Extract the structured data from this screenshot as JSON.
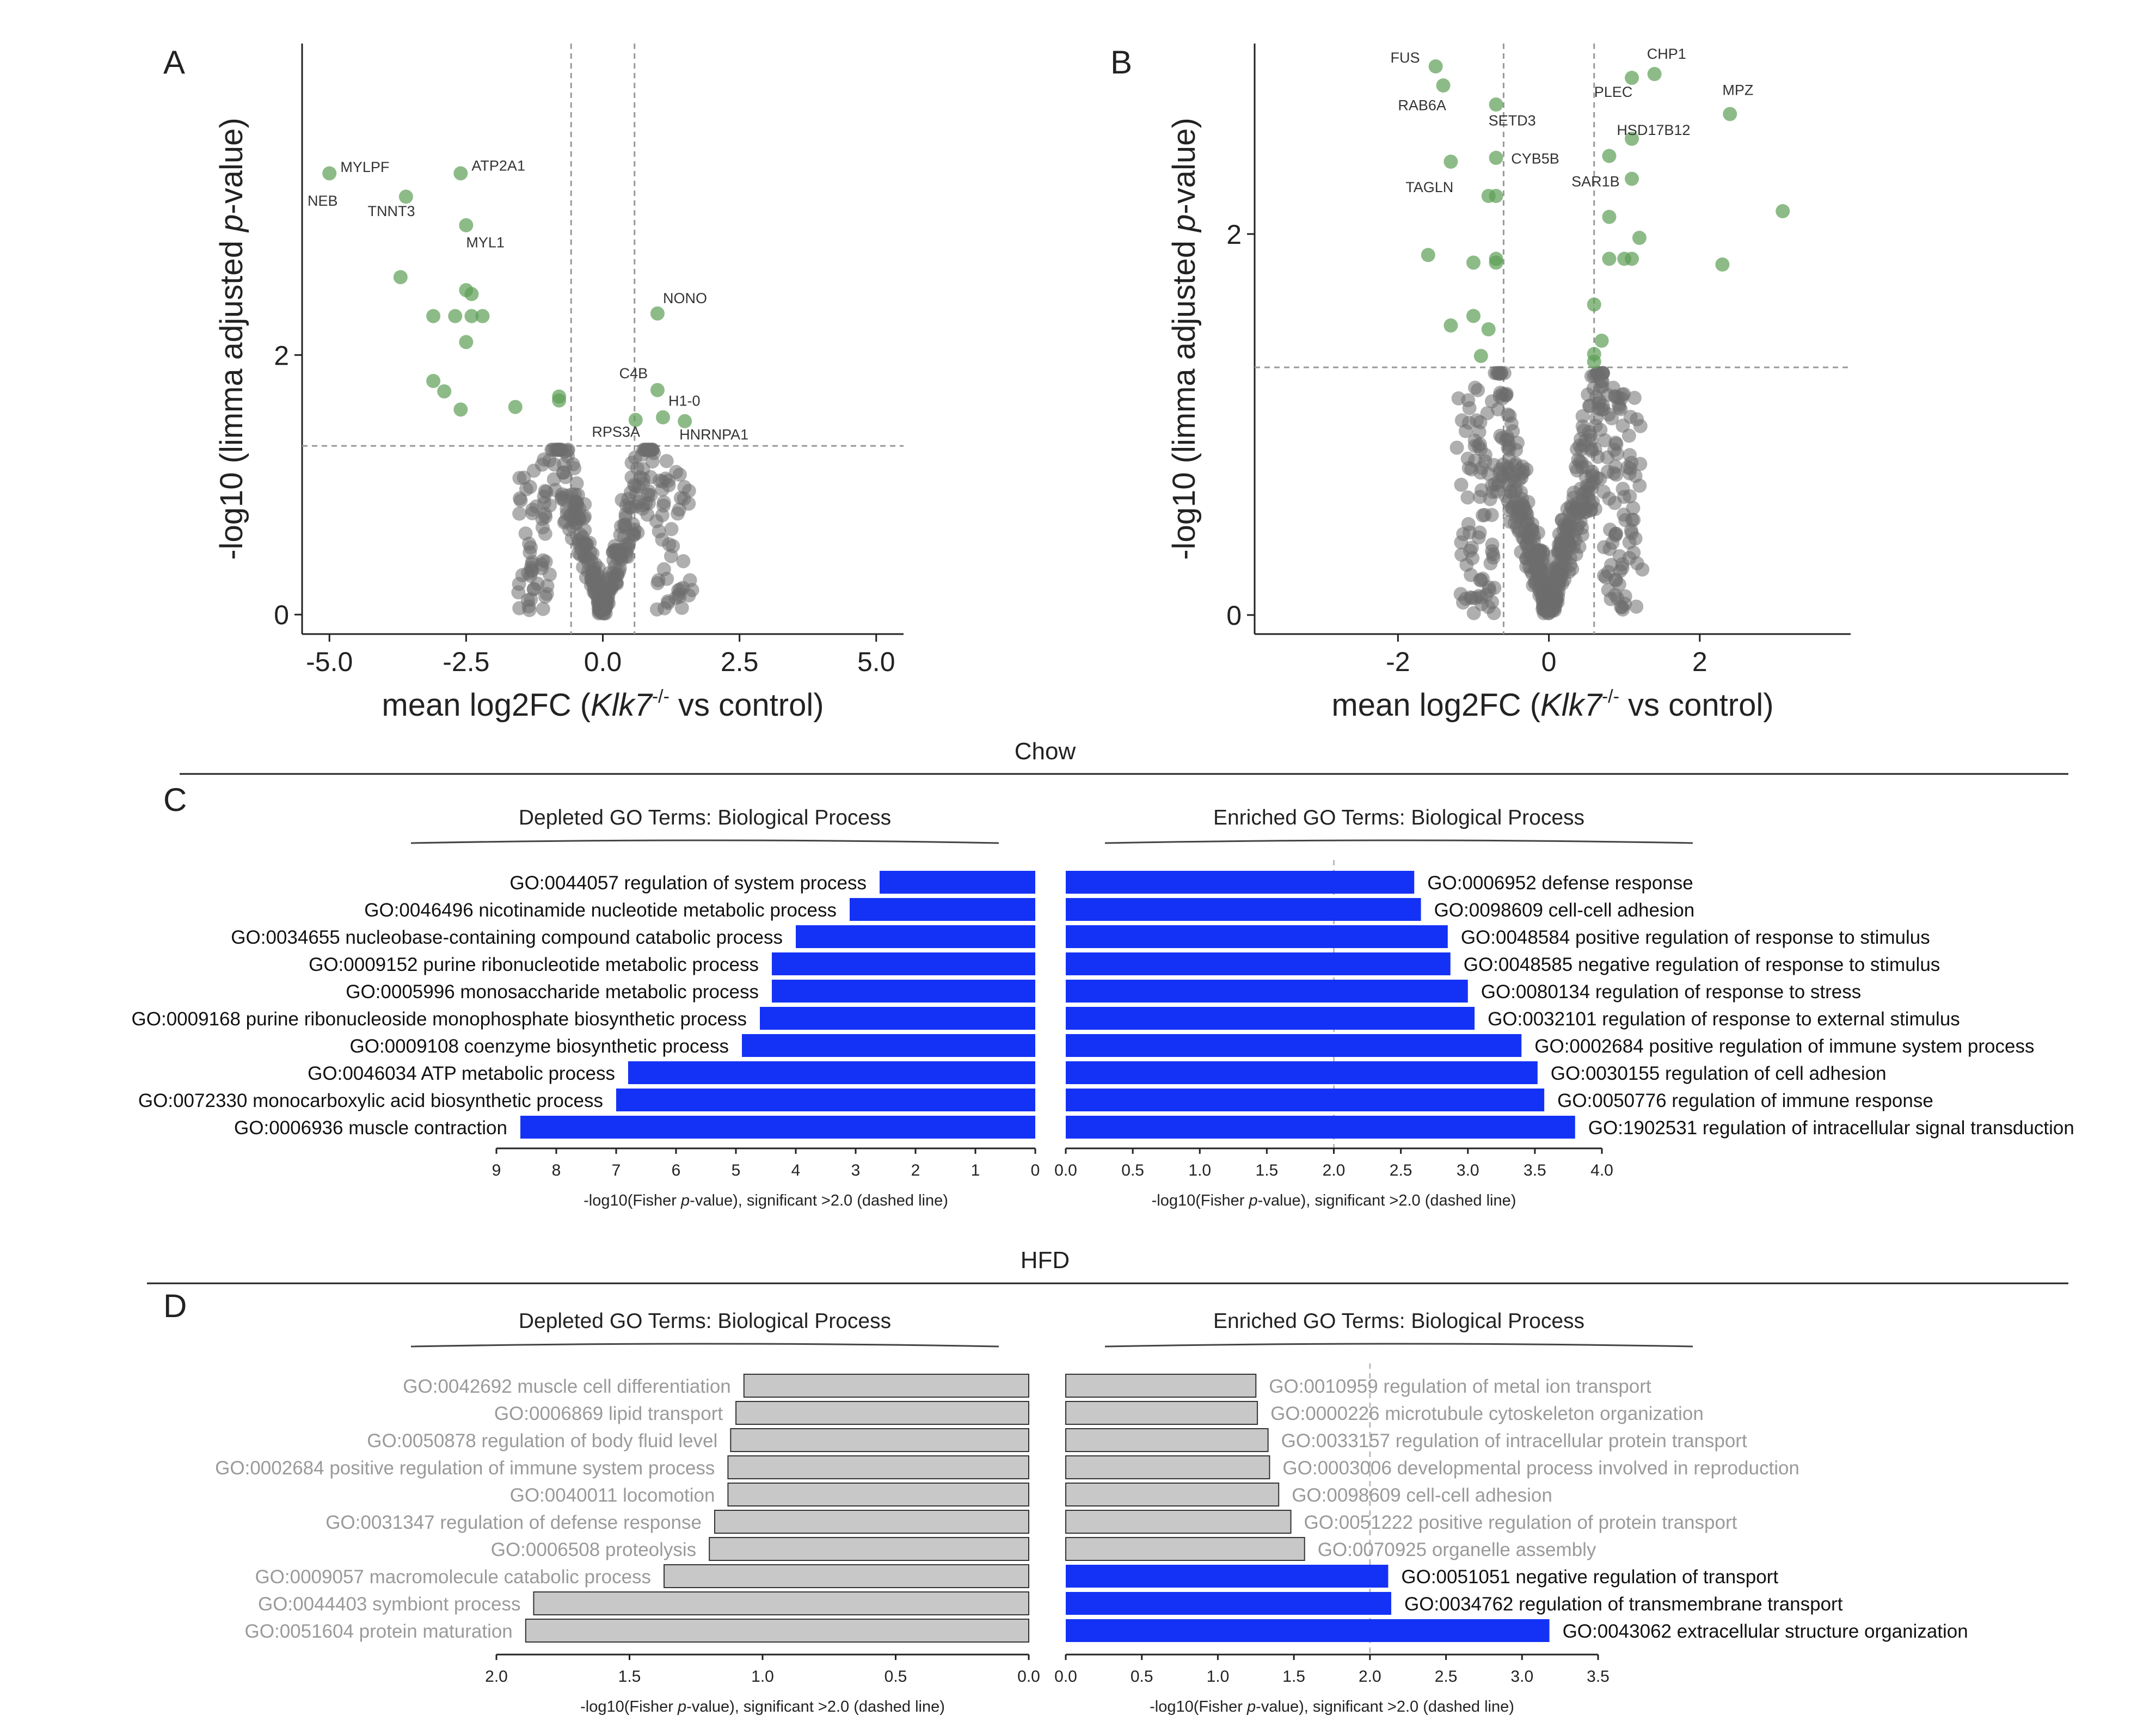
{
  "panels": {
    "A": "A",
    "B": "B",
    "C": "C",
    "D": "D"
  },
  "chart_data": [
    {
      "id": "A",
      "type": "scatter",
      "title": "",
      "xlabel_prefix": "mean log2FC (",
      "xlabel_gene": "Klk7",
      "xlabel_sup": "-/-",
      "xlabel_suffix": " vs control)",
      "ylabel_prefix": "-log10 (limma adjusted ",
      "ylabel_italic": "p",
      "ylabel_suffix": "-value)",
      "xlim": [
        -5.5,
        5.5
      ],
      "ylim": [
        -0.15,
        4.4
      ],
      "xticks": [
        -5.0,
        -2.5,
        0.0,
        2.5,
        5.0
      ],
      "xtick_labels": [
        "-5.0",
        "-2.5",
        "0.0",
        "2.5",
        "5.0"
      ],
      "yticks": [
        0,
        2
      ],
      "ytick_labels": [
        "0",
        "2"
      ],
      "vlines": [
        -0.58,
        0.58
      ],
      "hline": 1.3,
      "significant_points": [
        [
          -5.0,
          3.4
        ],
        [
          -3.6,
          3.22
        ],
        [
          -2.6,
          3.4
        ],
        [
          -2.5,
          3.0
        ],
        [
          -3.7,
          2.6
        ],
        [
          -2.5,
          2.5
        ],
        [
          -2.4,
          2.47
        ],
        [
          -3.1,
          2.3
        ],
        [
          -2.7,
          2.3
        ],
        [
          -2.4,
          2.3
        ],
        [
          -2.2,
          2.3
        ],
        [
          -2.5,
          2.1
        ],
        [
          -3.1,
          1.8
        ],
        [
          -2.9,
          1.72
        ],
        [
          -2.6,
          1.58
        ],
        [
          -1.6,
          1.6
        ],
        [
          -0.8,
          1.65
        ],
        [
          -0.8,
          1.68
        ],
        [
          1.0,
          2.32
        ],
        [
          1.0,
          1.73
        ],
        [
          1.1,
          1.52
        ],
        [
          0.6,
          1.5
        ],
        [
          1.5,
          1.49
        ]
      ],
      "labels": [
        {
          "text": "MYLPF",
          "x": -4.8,
          "y": 3.41,
          "anchor": "start"
        },
        {
          "text": "ATP2A1",
          "x": -2.4,
          "y": 3.42,
          "anchor": "start"
        },
        {
          "text": "NEB",
          "x": -5.4,
          "y": 3.15,
          "anchor": "start"
        },
        {
          "text": "TNNT3",
          "x": -4.3,
          "y": 3.07,
          "anchor": "start"
        },
        {
          "text": "MYL1",
          "x": -2.5,
          "y": 2.83,
          "anchor": "start"
        },
        {
          "text": "NONO",
          "x": 1.1,
          "y": 2.4,
          "anchor": "start"
        },
        {
          "text": "C4B",
          "x": 0.3,
          "y": 1.82,
          "anchor": "start"
        },
        {
          "text": "H1-0",
          "x": 1.2,
          "y": 1.61,
          "anchor": "start"
        },
        {
          "text": "RPS3A",
          "x": -0.2,
          "y": 1.37,
          "anchor": "start"
        },
        {
          "text": "HNRNPA1",
          "x": 1.4,
          "y": 1.35,
          "anchor": "start"
        }
      ]
    },
    {
      "id": "B",
      "type": "scatter",
      "title": "",
      "xlabel_prefix": "mean log2FC (",
      "xlabel_gene": "Klk7",
      "xlabel_sup": "-/-",
      "xlabel_suffix": " vs control)",
      "ylabel_prefix": "-log10 (limma adjusted ",
      "ylabel_italic": "p",
      "ylabel_suffix": "-value)",
      "xlim": [
        -3.9,
        4.0
      ],
      "ylim": [
        -0.1,
        3.0
      ],
      "xticks": [
        -2,
        0,
        2
      ],
      "xtick_labels": [
        "-2",
        "0",
        "2"
      ],
      "yticks": [
        0,
        2
      ],
      "ytick_labels": [
        "0",
        "2"
      ],
      "vlines": [
        -0.6,
        0.6
      ],
      "hline": 1.3,
      "significant_points": [
        [
          -1.5,
          2.88
        ],
        [
          -1.4,
          2.78
        ],
        [
          -0.7,
          2.68
        ],
        [
          1.1,
          2.82
        ],
        [
          1.4,
          2.84
        ],
        [
          2.4,
          2.63
        ],
        [
          1.1,
          2.5
        ],
        [
          0.8,
          2.41
        ],
        [
          -0.7,
          2.4
        ],
        [
          -1.3,
          2.38
        ],
        [
          1.1,
          2.29
        ],
        [
          -0.8,
          2.2
        ],
        [
          -0.7,
          2.2
        ],
        [
          0.8,
          2.09
        ],
        [
          3.1,
          2.12
        ],
        [
          1.2,
          1.98
        ],
        [
          -1.6,
          1.89
        ],
        [
          -0.7,
          1.87
        ],
        [
          -0.7,
          1.85
        ],
        [
          -1.0,
          1.85
        ],
        [
          0.8,
          1.87
        ],
        [
          1.0,
          1.87
        ],
        [
          1.1,
          1.87
        ],
        [
          2.3,
          1.84
        ],
        [
          0.6,
          1.63
        ],
        [
          -1.0,
          1.57
        ],
        [
          -1.3,
          1.52
        ],
        [
          -0.8,
          1.5
        ],
        [
          0.7,
          1.44
        ],
        [
          0.6,
          1.37
        ],
        [
          -0.9,
          1.36
        ],
        [
          0.6,
          1.33
        ]
      ],
      "labels": [
        {
          "text": "FUS",
          "x": -2.1,
          "y": 2.9,
          "anchor": "start"
        },
        {
          "text": "CHP1",
          "x": 1.3,
          "y": 2.92,
          "anchor": "start"
        },
        {
          "text": "MPZ",
          "x": 2.3,
          "y": 2.73,
          "anchor": "start"
        },
        {
          "text": "PLEC",
          "x": 0.6,
          "y": 2.72,
          "anchor": "start"
        },
        {
          "text": "RAB6A",
          "x": -2.0,
          "y": 2.65,
          "anchor": "start"
        },
        {
          "text": "SETD3",
          "x": -0.8,
          "y": 2.57,
          "anchor": "start"
        },
        {
          "text": "HSD17B12",
          "x": 0.9,
          "y": 2.52,
          "anchor": "start"
        },
        {
          "text": "CYB5B",
          "x": -0.5,
          "y": 2.37,
          "anchor": "start"
        },
        {
          "text": "SAR1B",
          "x": 0.3,
          "y": 2.25,
          "anchor": "start"
        },
        {
          "text": "TAGLN",
          "x": -1.9,
          "y": 2.22,
          "anchor": "start"
        }
      ]
    },
    {
      "id": "C",
      "type": "bar",
      "section": "Chow",
      "left": {
        "title": "Depleted GO Terms: Biological Process",
        "xlabel_prefix": "-log10(Fisher ",
        "xlabel_italic": "p",
        "xlabel_suffix": "-value), significant >2.0 (dashed line)",
        "xmax": 9,
        "xticks": [
          9,
          8,
          7,
          6,
          5,
          4,
          3,
          2,
          1,
          0
        ],
        "xtick_labels": [
          "9",
          "8",
          "7",
          "6",
          "5",
          "4",
          "3",
          "2",
          "1",
          "0"
        ],
        "categories": [
          "GO:0044057 regulation of system process",
          "GO:0046496 nicotinamide nucleotide metabolic process",
          "GO:0034655 nucleobase-containing compound catabolic process",
          "GO:0009152 purine ribonucleotide metabolic process",
          "GO:0005996 monosaccharide metabolic process",
          "GO:0009168 purine ribonucleoside monophosphate biosynthetic process",
          "GO:0009108 coenzyme biosynthetic process",
          "GO:0046034 ATP metabolic process",
          "GO:0072330 monocarboxylic acid biosynthetic process",
          "GO:0006936 muscle contraction"
        ],
        "values": [
          2.6,
          3.1,
          4.0,
          4.4,
          4.4,
          4.6,
          4.9,
          6.8,
          7.0,
          8.6
        ],
        "significant": [
          true,
          true,
          true,
          true,
          true,
          true,
          true,
          true,
          true,
          true
        ]
      },
      "right": {
        "title": "Enriched GO Terms: Biological Process",
        "xlabel_prefix": "-log10(Fisher ",
        "xlabel_italic": "p",
        "xlabel_suffix": "-value), significant >2.0 (dashed line)",
        "xmax": 4.0,
        "xticks": [
          0.0,
          0.5,
          1.0,
          1.5,
          2.0,
          2.5,
          3.0,
          3.5,
          4.0
        ],
        "xtick_labels": [
          "0.0",
          "0.5",
          "1.0",
          "1.5",
          "2.0",
          "2.5",
          "3.0",
          "3.5",
          "4.0"
        ],
        "categories": [
          "GO:0006952 defense response",
          "GO:0098609 cell-cell adhesion",
          "GO:0048584 positive regulation of response to stimulus",
          "GO:0048585 negative regulation of response to stimulus",
          "GO:0080134 regulation of response to stress",
          "GO:0032101 regulation of response to external stimulus",
          "GO:0002684 positive regulation of immune system process",
          "GO:0030155 regulation of cell adhesion",
          "GO:0050776 regulation of immune response",
          "GO:1902531 regulation of intracellular signal transduction"
        ],
        "values": [
          2.6,
          2.65,
          2.85,
          2.87,
          3.0,
          3.05,
          3.4,
          3.52,
          3.57,
          3.8
        ],
        "significant": [
          true,
          true,
          true,
          true,
          true,
          true,
          true,
          true,
          true,
          true
        ]
      }
    },
    {
      "id": "D",
      "type": "bar",
      "section": "HFD",
      "left": {
        "title": "Depleted GO Terms: Biological Process",
        "xlabel_prefix": "-log10(Fisher ",
        "xlabel_italic": "p",
        "xlabel_suffix": "-value), significant >2.0 (dashed line)",
        "xmax": 2.0,
        "xticks": [
          2.0,
          1.5,
          1.0,
          0.5,
          0.0
        ],
        "xtick_labels": [
          "2.0",
          "1.5",
          "1.0",
          "0.5",
          "0.0"
        ],
        "categories": [
          "GO:0042692 muscle cell differentiation",
          "GO:0006869 lipid transport",
          "GO:0050878 regulation of body fluid level",
          "GO:0002684 positive regulation of immune system process",
          "GO:0040011 locomotion",
          "GO:0031347 regulation of defense response",
          "GO:0006508 proteolysis",
          "GO:0009057 macromolecule catabolic process",
          "GO:0044403 symbiont process",
          "GO:0051604 protein maturation"
        ],
        "values": [
          1.07,
          1.1,
          1.12,
          1.13,
          1.13,
          1.18,
          1.2,
          1.37,
          1.86,
          1.89
        ],
        "significant": [
          false,
          false,
          false,
          false,
          false,
          false,
          false,
          false,
          false,
          false
        ]
      },
      "right": {
        "title": "Enriched GO Terms: Biological Process",
        "xlabel_prefix": "-log10(Fisher ",
        "xlabel_italic": "p",
        "xlabel_suffix": "-value), significant >2.0 (dashed line)",
        "xmax": 3.5,
        "xticks": [
          0.0,
          0.5,
          1.0,
          1.5,
          2.0,
          2.5,
          3.0,
          3.5
        ],
        "xtick_labels": [
          "0.0",
          "0.5",
          "1.0",
          "1.5",
          "2.0",
          "2.5",
          "3.0",
          "3.5"
        ],
        "categories": [
          "GO:0010959 regulation of metal ion transport",
          "GO:0000226 microtubule cytoskeleton organization",
          "GO:0033157 regulation of intracellular protein transport",
          "GO:0003006 developmental process involved in reproduction",
          "GO:0098609 cell-cell adhesion",
          "GO:0051222 positive regulation of protein transport",
          "GO:0070925 organelle assembly",
          "GO:0051051 negative regulation of transport",
          "GO:0034762 regulation of transmembrane transport",
          "GO:0043062 extracellular structure organization"
        ],
        "values": [
          1.25,
          1.26,
          1.33,
          1.34,
          1.4,
          1.48,
          1.57,
          2.12,
          2.14,
          3.18
        ],
        "significant": [
          false,
          false,
          false,
          false,
          false,
          false,
          false,
          true,
          true,
          true
        ]
      }
    }
  ],
  "colors": {
    "significant_point": "#5c9e55",
    "nonsig_point": "#6e6e6e",
    "bar_significant": "#1432f5",
    "bar_nonsig": "#c8c8c8",
    "label_sig": "#111111",
    "label_nonsig": "#9a9a9a"
  }
}
